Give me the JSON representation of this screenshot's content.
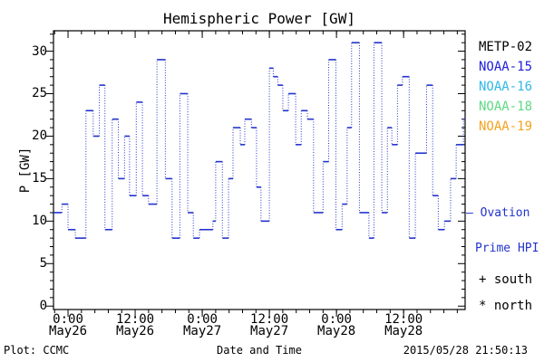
{
  "title": "Hemispheric Power [GW]",
  "footer": {
    "credit": "Plot: CCMC",
    "xlabel": "Date and Time",
    "timestamp": "2015/05/28 21:50:13"
  },
  "legend": {
    "satellites": [
      {
        "label": "METP-02",
        "color": "#000000"
      },
      {
        "label": "NOAA-15",
        "color": "#2020dd"
      },
      {
        "label": "NOAA-16",
        "color": "#30b8e8"
      },
      {
        "label": "NOAA-18",
        "color": "#5fd985"
      },
      {
        "label": "NOAA-19",
        "color": "#f5a31f"
      }
    ],
    "model": {
      "marker": "—",
      "name_line1": "Ovation",
      "name_line2": "Prime HPI",
      "color": "#2233cc"
    },
    "markers": [
      {
        "symbol": "+",
        "label": "south"
      },
      {
        "symbol": "*",
        "label": "north"
      }
    ]
  },
  "chart_data": {
    "type": "line",
    "step": true,
    "title": "Hemispheric Power [GW]",
    "xlabel": "Date and Time",
    "ylabel": "P [GW]",
    "series_name": "Ovation Prime HPI",
    "units": "GW",
    "line_color": "#2233cc",
    "axis_color": "#000000",
    "ylim": [
      -0.4,
      32.4
    ],
    "y_major_ticks": [
      0,
      5,
      10,
      15,
      20,
      25,
      30
    ],
    "y_minor_step": 1,
    "xlim_hours": [
      -2.6,
      71.0
    ],
    "x_minor_step_hours": 2.4,
    "x_major_ticks": [
      {
        "hour": 0,
        "time": "0:00",
        "date": "May26"
      },
      {
        "hour": 12,
        "time": "12:00",
        "date": "May26"
      },
      {
        "hour": 24,
        "time": "0:00",
        "date": "May27"
      },
      {
        "hour": 36,
        "time": "12:00",
        "date": "May27"
      },
      {
        "hour": 48,
        "time": "0:00",
        "date": "May28"
      },
      {
        "hour": 60,
        "time": "12:00",
        "date": "May28"
      }
    ],
    "t_unit": "hours since 2015-05-26 00:00 UT",
    "t_end": 71.0,
    "steps": [
      [
        -2.6,
        11
      ],
      [
        -1.1,
        12
      ],
      [
        0.0,
        9
      ],
      [
        1.3,
        8
      ],
      [
        3.2,
        23
      ],
      [
        4.5,
        20
      ],
      [
        5.6,
        26
      ],
      [
        6.6,
        9
      ],
      [
        7.9,
        22
      ],
      [
        9.0,
        15
      ],
      [
        10.1,
        20
      ],
      [
        11.0,
        13
      ],
      [
        12.2,
        24
      ],
      [
        13.3,
        13
      ],
      [
        14.4,
        12
      ],
      [
        15.9,
        29
      ],
      [
        17.4,
        15
      ],
      [
        18.6,
        8
      ],
      [
        20.0,
        25
      ],
      [
        21.4,
        11
      ],
      [
        22.4,
        8
      ],
      [
        23.5,
        9
      ],
      [
        25.9,
        10
      ],
      [
        26.4,
        17
      ],
      [
        27.6,
        8
      ],
      [
        28.7,
        15
      ],
      [
        29.5,
        21
      ],
      [
        30.8,
        19
      ],
      [
        31.6,
        22
      ],
      [
        32.8,
        21
      ],
      [
        33.7,
        14
      ],
      [
        34.5,
        10
      ],
      [
        36.0,
        28
      ],
      [
        36.7,
        27
      ],
      [
        37.5,
        26
      ],
      [
        38.4,
        23
      ],
      [
        39.4,
        25
      ],
      [
        40.7,
        19
      ],
      [
        41.7,
        23
      ],
      [
        42.8,
        22
      ],
      [
        43.9,
        11
      ],
      [
        45.6,
        17
      ],
      [
        46.6,
        29
      ],
      [
        47.9,
        9
      ],
      [
        49.0,
        12
      ],
      [
        49.9,
        21
      ],
      [
        50.7,
        31
      ],
      [
        52.1,
        11
      ],
      [
        53.8,
        8
      ],
      [
        54.7,
        31
      ],
      [
        56.1,
        11
      ],
      [
        57.1,
        21
      ],
      [
        57.9,
        19
      ],
      [
        58.9,
        26
      ],
      [
        59.8,
        27
      ],
      [
        61.0,
        8
      ],
      [
        62.1,
        18
      ],
      [
        64.1,
        26
      ],
      [
        65.2,
        13
      ],
      [
        66.2,
        9
      ],
      [
        67.3,
        10
      ],
      [
        68.4,
        15
      ],
      [
        69.4,
        19
      ],
      [
        70.7,
        22
      ]
    ]
  }
}
